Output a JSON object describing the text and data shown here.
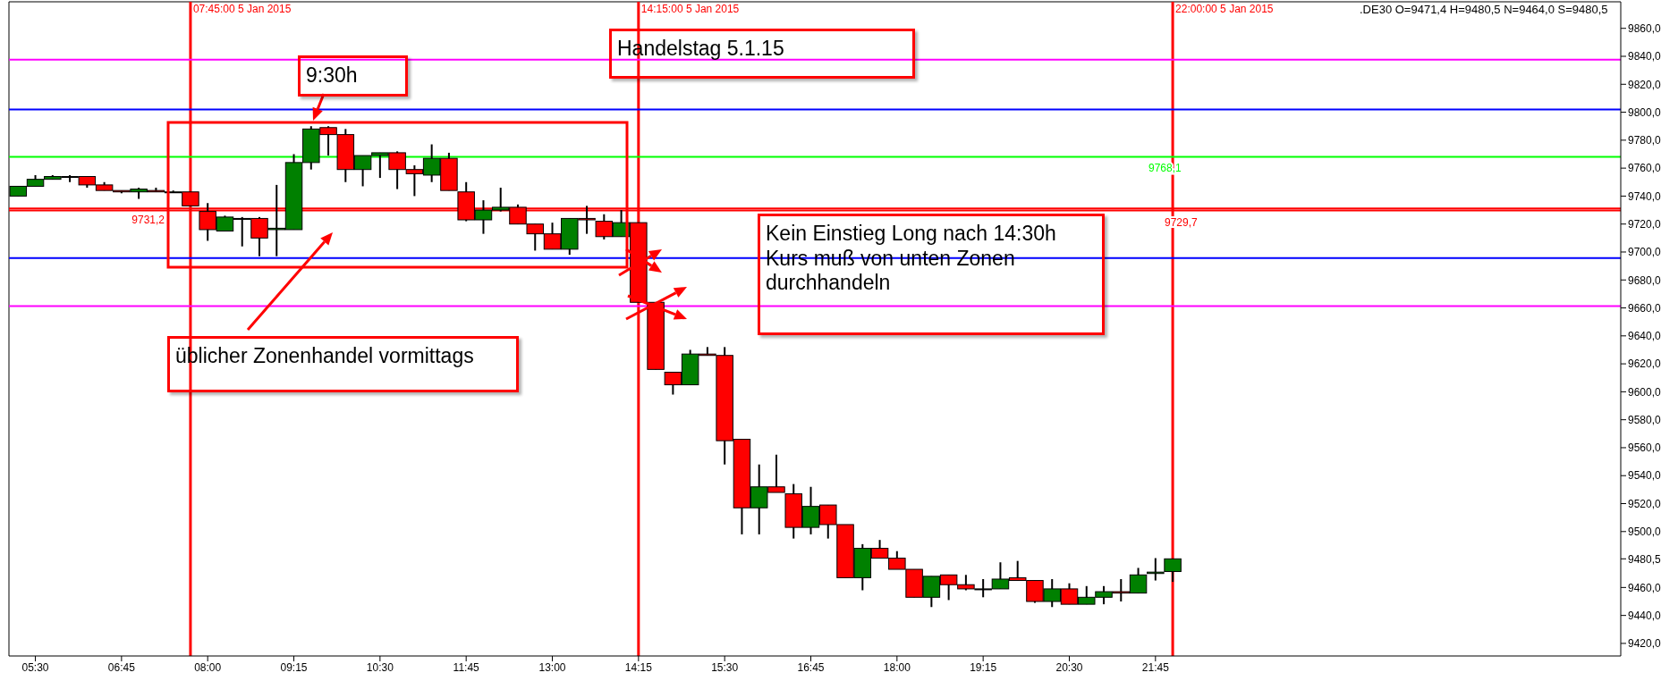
{
  "chart_data": {
    "type": "candlestick",
    "x": [
      "2015-01-05T05:15",
      "2015-01-05T05:30",
      "2015-01-05T05:45",
      "2015-01-05T06:00",
      "2015-01-05T06:15",
      "2015-01-05T06:30",
      "2015-01-05T06:45",
      "2015-01-05T07:00",
      "2015-01-05T07:15",
      "2015-01-05T07:30",
      "2015-01-05T07:45",
      "2015-01-05T08:00",
      "2015-01-05T08:15",
      "2015-01-05T08:30",
      "2015-01-05T08:45",
      "2015-01-05T09:00",
      "2015-01-05T09:15",
      "2015-01-05T09:30",
      "2015-01-05T09:45",
      "2015-01-05T10:00",
      "2015-01-05T10:15",
      "2015-01-05T10:30",
      "2015-01-05T10:45",
      "2015-01-05T11:00",
      "2015-01-05T11:15",
      "2015-01-05T11:30",
      "2015-01-05T11:45",
      "2015-01-05T12:00",
      "2015-01-05T12:15",
      "2015-01-05T12:30",
      "2015-01-05T12:45",
      "2015-01-05T13:00",
      "2015-01-05T13:15",
      "2015-01-05T13:30",
      "2015-01-05T13:45",
      "2015-01-05T14:00",
      "2015-01-05T14:15",
      "2015-01-05T14:30",
      "2015-01-05T14:45",
      "2015-01-05T15:00",
      "2015-01-05T15:15",
      "2015-01-05T15:30",
      "2015-01-05T15:45",
      "2015-01-05T16:00",
      "2015-01-05T16:15",
      "2015-01-05T16:30",
      "2015-01-05T16:45",
      "2015-01-05T17:00",
      "2015-01-05T17:15",
      "2015-01-05T17:30",
      "2015-01-05T17:45",
      "2015-01-05T18:00",
      "2015-01-05T18:15",
      "2015-01-05T18:30",
      "2015-01-05T18:45",
      "2015-01-05T19:00",
      "2015-01-05T19:15",
      "2015-01-05T19:30",
      "2015-01-05T19:45",
      "2015-01-05T20:00",
      "2015-01-05T20:15",
      "2015-01-05T20:30",
      "2015-01-05T20:45",
      "2015-01-05T21:00",
      "2015-01-05T21:15",
      "2015-01-05T21:30",
      "2015-01-05T21:45",
      "2015-01-05T22:00"
    ],
    "ohlc": [
      [
        9740,
        9747,
        9740,
        9747
      ],
      [
        9747,
        9755,
        9747,
        9752
      ],
      [
        9752,
        9755,
        9752,
        9754
      ],
      [
        9754,
        9755,
        9750,
        9754
      ],
      [
        9754,
        9754,
        9746,
        9748
      ],
      [
        9748,
        9750,
        9744,
        9744
      ],
      [
        9744,
        9744,
        9742,
        9743
      ],
      [
        9743,
        9746,
        9738,
        9745
      ],
      [
        9744,
        9746,
        9743,
        9743
      ],
      [
        9743,
        9744,
        9743,
        9743
      ],
      [
        9743,
        9743,
        9733,
        9733
      ],
      [
        9729,
        9735,
        9708,
        9716
      ],
      [
        9715,
        9726,
        9715,
        9725
      ],
      [
        9724,
        9725,
        9704,
        9724
      ],
      [
        9724,
        9725,
        9697,
        9710
      ],
      [
        9716,
        9748,
        9697,
        9717
      ],
      [
        9716,
        9770,
        9716,
        9764
      ],
      [
        9764,
        9790,
        9759,
        9788
      ],
      [
        9789,
        9790,
        9769,
        9784
      ],
      [
        9784,
        9788,
        9750,
        9759
      ],
      [
        9759,
        9769,
        9747,
        9769
      ],
      [
        9769,
        9771,
        9753,
        9771
      ],
      [
        9771,
        9772,
        9745,
        9759
      ],
      [
        9759,
        9762,
        9740,
        9756
      ],
      [
        9755,
        9777,
        9750,
        9767
      ],
      [
        9767,
        9771,
        9744,
        9744
      ],
      [
        9743,
        9750,
        9722,
        9723
      ],
      [
        9723,
        9737,
        9713,
        9730
      ],
      [
        9730,
        9746,
        9729,
        9732
      ],
      [
        9732,
        9734,
        9720,
        9720
      ],
      [
        9720,
        9720,
        9701,
        9713
      ],
      [
        9713,
        9721,
        9702,
        9702
      ],
      [
        9702,
        9724,
        9698,
        9724
      ],
      [
        9724,
        9733,
        9713,
        9723
      ],
      [
        9722,
        9727,
        9709,
        9711
      ],
      [
        9711,
        9730,
        9711,
        9721
      ],
      [
        9721,
        9721,
        9664,
        9664
      ],
      [
        9664,
        9664,
        9616,
        9616
      ],
      [
        9614,
        9614,
        9598,
        9605
      ],
      [
        9605,
        9630,
        9605,
        9627
      ],
      [
        9627,
        9632,
        9626,
        9626
      ],
      [
        9626,
        9632,
        9548,
        9565
      ],
      [
        9566,
        9566,
        9498,
        9517
      ],
      [
        9517,
        9548,
        9498,
        9532
      ],
      [
        9532,
        9555,
        9528,
        9528
      ],
      [
        9527,
        9534,
        9495,
        9503
      ],
      [
        9503,
        9532,
        9498,
        9518
      ],
      [
        9519,
        9519,
        9495,
        9505
      ],
      [
        9505,
        9505,
        9467,
        9467
      ],
      [
        9467,
        9491,
        9458,
        9488
      ],
      [
        9488,
        9494,
        9481,
        9481
      ],
      [
        9481,
        9486,
        9473,
        9473
      ],
      [
        9473,
        9473,
        9453,
        9453
      ],
      [
        9453,
        9468,
        9446,
        9468
      ],
      [
        9469,
        9469,
        9451,
        9462
      ],
      [
        9462,
        9469,
        9458,
        9459
      ],
      [
        9459,
        9466,
        9453,
        9459
      ],
      [
        9459,
        9478,
        9459,
        9466
      ],
      [
        9467,
        9479,
        9465,
        9465
      ],
      [
        9465,
        9465,
        9449,
        9450
      ],
      [
        9450,
        9466,
        9446,
        9459
      ],
      [
        9459,
        9463,
        9448,
        9448
      ],
      [
        9448,
        9461,
        9448,
        9453
      ],
      [
        9453,
        9461,
        9448,
        9457
      ],
      [
        9457,
        9466,
        9450,
        9456
      ],
      [
        9456,
        9474,
        9456,
        9469
      ],
      [
        9470,
        9481,
        9465,
        9471
      ],
      [
        9471.4,
        9480.5,
        9464.0,
        9480.5
      ]
    ],
    "xlim": [
      "2015-01-05T05:07",
      "2015-01-06T04:30"
    ],
    "xticks": [
      {
        "value": "2015-01-05T05:30",
        "label": "05:30"
      },
      {
        "value": "2015-01-05T06:45",
        "label": "06:45"
      },
      {
        "value": "2015-01-05T08:00",
        "label": "08:00"
      },
      {
        "value": "2015-01-05T09:15",
        "label": "09:15"
      },
      {
        "value": "2015-01-05T10:30",
        "label": "10:30"
      },
      {
        "value": "2015-01-05T11:45",
        "label": "11:45"
      },
      {
        "value": "2015-01-05T13:00",
        "label": "13:00"
      },
      {
        "value": "2015-01-05T14:15",
        "label": "14:15"
      },
      {
        "value": "2015-01-05T15:30",
        "label": "15:30"
      },
      {
        "value": "2015-01-05T16:45",
        "label": "16:45"
      },
      {
        "value": "2015-01-05T18:00",
        "label": "18:00"
      },
      {
        "value": "2015-01-05T19:15",
        "label": "19:15"
      },
      {
        "value": "2015-01-05T20:30",
        "label": "20:30"
      },
      {
        "value": "2015-01-05T21:45",
        "label": "21:45"
      }
    ],
    "ylim": [
      9411,
      9879
    ],
    "yticks": [
      {
        "value": 9420,
        "label": "9420,0"
      },
      {
        "value": 9440,
        "label": "9440,0"
      },
      {
        "value": 9460,
        "label": "9460,0"
      },
      {
        "value": 9480.5,
        "label": "9480,5"
      },
      {
        "value": 9500,
        "label": "9500,0"
      },
      {
        "value": 9520,
        "label": "9520,0"
      },
      {
        "value": 9540,
        "label": "9540,0"
      },
      {
        "value": 9560,
        "label": "9560,0"
      },
      {
        "value": 9580,
        "label": "9580,0"
      },
      {
        "value": 9600,
        "label": "9600,0"
      },
      {
        "value": 9620,
        "label": "9620,0"
      },
      {
        "value": 9640,
        "label": "9640,0"
      },
      {
        "value": 9660,
        "label": "9660,0"
      },
      {
        "value": 9680,
        "label": "9680,0"
      },
      {
        "value": 9700,
        "label": "9700,0"
      },
      {
        "value": 9720,
        "label": "9720,0"
      },
      {
        "value": 9740,
        "label": "9740,0"
      },
      {
        "value": 9760,
        "label": "9760,0"
      },
      {
        "value": 9780,
        "label": "9780,0"
      },
      {
        "value": 9800,
        "label": "9800,0"
      },
      {
        "value": 9820,
        "label": "9820,0"
      },
      {
        "value": 9840,
        "label": "9840,0"
      },
      {
        "value": 9860,
        "label": "9860,0"
      }
    ],
    "ref_lines": [
      {
        "axis": "x",
        "value": "2015-01-05T07:45",
        "label": "07:45:00 5 Jan 2015",
        "color": "#ff0000"
      },
      {
        "axis": "x",
        "value": "2015-01-05T14:15",
        "label": "14:15:00 5 Jan 2015",
        "color": "#ff0000"
      },
      {
        "axis": "x",
        "value": "2015-01-05T22:00",
        "label": "22:00:00 5 Jan 2015",
        "color": "#ff0000"
      },
      {
        "axis": "y",
        "value": 9837.6,
        "color": "#ff00ff"
      },
      {
        "axis": "y",
        "value": 9802,
        "color": "#0000ff"
      },
      {
        "axis": "y",
        "value": 9768.1,
        "label": "9768,1",
        "color": "#00ff00"
      },
      {
        "axis": "y",
        "value": 9731.2,
        "label": "9731,2",
        "color": "#ff0000"
      },
      {
        "axis": "y",
        "value": 9729.7,
        "label": "9729,7",
        "color": "#ff0000"
      },
      {
        "axis": "y",
        "value": 9695.7,
        "color": "#0000ff"
      },
      {
        "axis": "y",
        "value": 9661.3,
        "color": "#ff00ff"
      }
    ],
    "annotations": [
      ".DE30 O=9471,4 H=9480,5 N=9464,0 S=9480,5",
      "Handelstag 5.1.15",
      "9:30h",
      "üblicher Zonenhandel vormittags",
      "Kein Einstieg Long nach 14:30h\nKurs muß von unten Zonen\ndurchhandeln"
    ]
  }
}
